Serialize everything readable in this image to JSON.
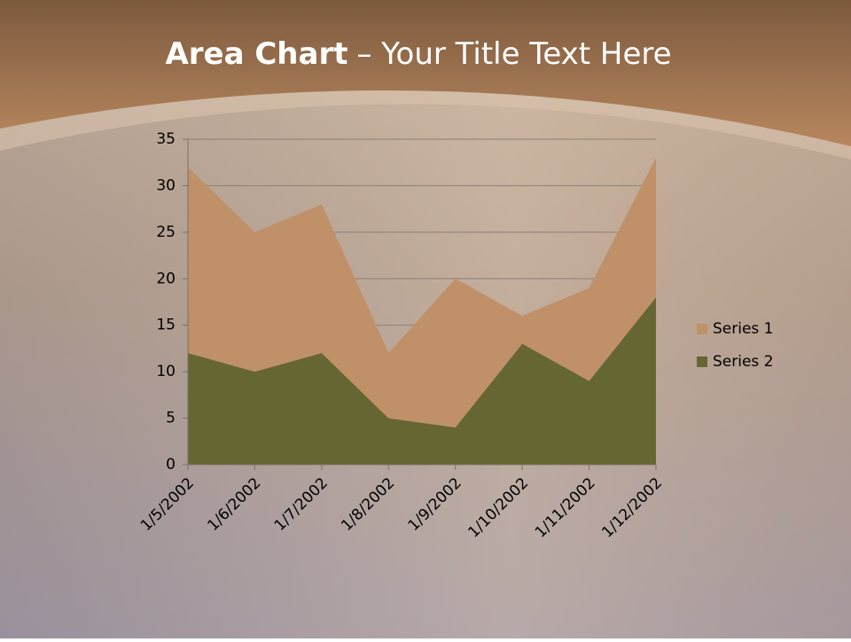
{
  "chart_data": {
    "type": "stacked_area",
    "title_bold": "Area Chart",
    "title_rest": "– Your Title Text Here",
    "categories": [
      "1/5/2002",
      "1/6/2002",
      "1/7/2002",
      "1/8/2002",
      "1/9/2002",
      "1/10/2002",
      "1/11/2002",
      "1/12/2002"
    ],
    "series": [
      {
        "name": "Series 1",
        "color": "#c09068",
        "values": [
          20,
          15,
          16,
          7,
          16,
          3,
          10,
          15
        ]
      },
      {
        "name": "Series 2",
        "color": "#666633",
        "values": [
          12,
          10,
          12,
          5,
          4,
          13,
          9,
          18
        ]
      }
    ],
    "stack_order": "last_series_bottom",
    "ylim": [
      0,
      35
    ],
    "yticks": [
      0,
      5,
      10,
      15,
      20,
      25,
      30,
      35
    ],
    "grid": true,
    "legend": "right"
  }
}
